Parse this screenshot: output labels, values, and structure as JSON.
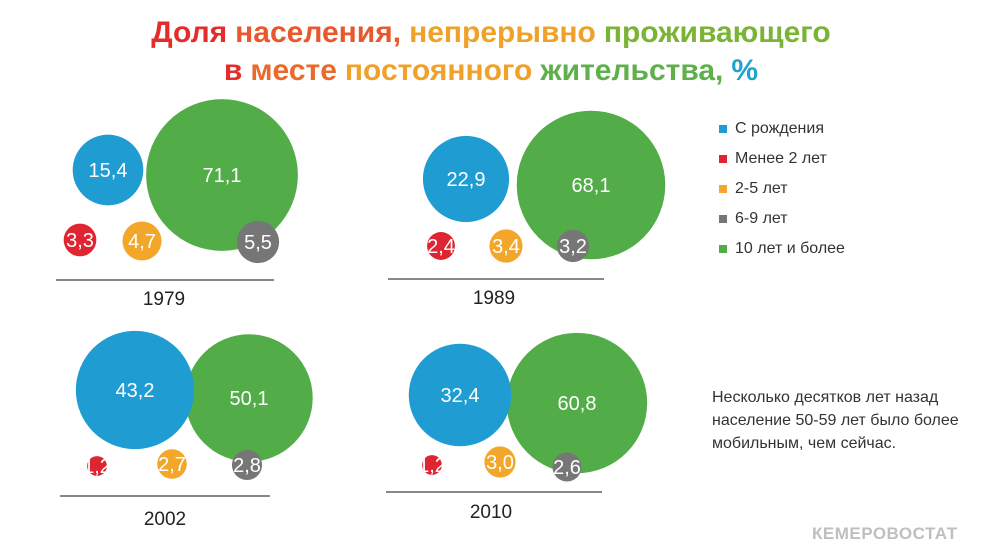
{
  "title": {
    "line1": [
      "Доля",
      "населения,",
      "непрерывно",
      "проживающего"
    ],
    "line2": [
      "в",
      "месте",
      "постоянного",
      "жительства,",
      "%"
    ],
    "colors1": [
      "#e42c2c",
      "#e9582c",
      "#f0a12a",
      "#7ab335",
      "#1ea3cf"
    ],
    "colors2": [
      "#e42c2c",
      "#e96a2a",
      "#f0a12a",
      "#5fb04a",
      "#1ea3cf"
    ]
  },
  "legend": {
    "items": [
      {
        "label": "С рождения",
        "color": "#1f9dd3"
      },
      {
        "label": "Менее 2 лет",
        "color": "#e02532"
      },
      {
        "label": "2-5 лет",
        "color": "#f2a72b"
      },
      {
        "label": "6-9 лет",
        "color": "#767676"
      },
      {
        "label": "10 лет и более",
        "color": "#52ad48"
      }
    ]
  },
  "note": "Несколько десятков лет назад население 50-59 лет было более мобильным, чем сейчас.",
  "brand": "КЕМЕРОВОСТАТ",
  "chart_data": {
    "type": "bubble",
    "series_names": [
      "С рождения",
      "Менее 2 лет",
      "2-5 лет",
      "6-9 лет",
      "10 лет и более"
    ],
    "panels": [
      {
        "year": "1979",
        "values": {
          "С рождения": 15.4,
          "Менее 2 лет": 3.3,
          "2-5 лет": 4.7,
          "6-9 лет": 5.5,
          "10 лет и более": 71.1
        },
        "labels": {
          "С рождения": "15,4",
          "Менее 2 лет": "3,3",
          "2-5 лет": "4,7",
          "6-9 лет": "5,5",
          "10 лет и более": "71,1"
        }
      },
      {
        "year": "1989",
        "values": {
          "С рождения": 22.9,
          "Менее 2 лет": 2.4,
          "2-5 лет": 3.4,
          "6-9 лет": 3.2,
          "10 лет и более": 68.1
        },
        "labels": {
          "С рождения": "22,9",
          "Менее 2 лет": "2,4",
          "2-5 лет": "3,4",
          "6-9 лет": "3,2",
          "10 лет и более": "68,1"
        }
      },
      {
        "year": "2002",
        "values": {
          "С рождения": 43.2,
          "Менее 2 лет": 1.2,
          "2-5 лет": 2.7,
          "6-9 лет": 2.8,
          "10 лет и более": 50.1
        },
        "labels": {
          "С рождения": "43,2",
          "Менее 2 лет": "1,2",
          "2-5 лет": "2,7",
          "6-9 лет": "2,8",
          "10 лет и более": "50,1"
        }
      },
      {
        "year": "2010",
        "values": {
          "С рождения": 32.4,
          "Менее 2 лет": 1.2,
          "2-5 лет": 3.0,
          "6-9 лет": 2.6,
          "10 лет и более": 60.8
        },
        "labels": {
          "С рождения": "32,4",
          "Менее 2 лет": "1,2",
          "2-5 лет": "3,0",
          "6-9 лет": "2,6",
          "10 лет и более": "60,8"
        }
      }
    ]
  }
}
